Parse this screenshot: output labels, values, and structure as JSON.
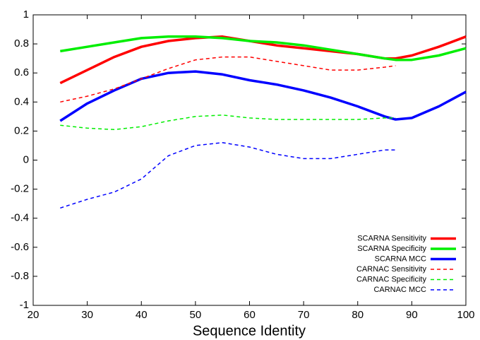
{
  "chart_data": {
    "type": "line",
    "xlabel": "Sequence Identity",
    "x": [
      25,
      30,
      35,
      40,
      45,
      50,
      55,
      60,
      65,
      70,
      75,
      80,
      85,
      87,
      90,
      95,
      100
    ],
    "series": [
      {
        "name": "SCARNA Sensitivity",
        "color": "#ff0000",
        "dashed": false,
        "values": [
          0.53,
          0.62,
          0.71,
          0.78,
          0.82,
          0.84,
          0.85,
          0.82,
          0.79,
          0.77,
          0.75,
          0.73,
          0.7,
          0.7,
          0.72,
          0.78,
          0.85
        ]
      },
      {
        "name": "SCARNA Specificity",
        "color": "#00ee00",
        "dashed": false,
        "values": [
          0.75,
          0.78,
          0.81,
          0.84,
          0.85,
          0.85,
          0.84,
          0.82,
          0.81,
          0.79,
          0.76,
          0.73,
          0.7,
          0.69,
          0.69,
          0.72,
          0.77
        ]
      },
      {
        "name": "SCARNA MCC",
        "color": "#0000ff",
        "dashed": false,
        "values": [
          0.27,
          0.39,
          0.48,
          0.56,
          0.6,
          0.61,
          0.59,
          0.55,
          0.52,
          0.48,
          0.43,
          0.37,
          0.3,
          0.28,
          0.29,
          0.37,
          0.47
        ]
      },
      {
        "name": "CARNAC Sensitivity",
        "color": "#ff0000",
        "dashed": true,
        "values": [
          0.4,
          0.44,
          0.49,
          0.56,
          0.63,
          0.69,
          0.71,
          0.71,
          0.68,
          0.65,
          0.62,
          0.62,
          0.64,
          0.65,
          null,
          null,
          null
        ]
      },
      {
        "name": "CARNAC Specificity",
        "color": "#00ee00",
        "dashed": true,
        "values": [
          0.24,
          0.22,
          0.21,
          0.23,
          0.27,
          0.3,
          0.31,
          0.29,
          0.28,
          0.28,
          0.28,
          0.28,
          0.29,
          0.29,
          null,
          null,
          null
        ]
      },
      {
        "name": "CARNAC MCC",
        "color": "#0000ff",
        "dashed": true,
        "values": [
          -0.33,
          -0.27,
          -0.22,
          -0.13,
          0.03,
          0.1,
          0.12,
          0.09,
          0.04,
          0.01,
          0.01,
          0.04,
          0.07,
          0.07,
          null,
          null,
          null
        ]
      }
    ],
    "xlim": [
      20,
      100
    ],
    "xticks": [
      20,
      30,
      40,
      50,
      60,
      70,
      80,
      90,
      100
    ],
    "ylim": [
      -1,
      1
    ],
    "yticks": [
      -1,
      -0.8,
      -0.6,
      -0.4,
      -0.2,
      0,
      0.2,
      0.4,
      0.6,
      0.8,
      1
    ],
    "legend": "lower right"
  }
}
